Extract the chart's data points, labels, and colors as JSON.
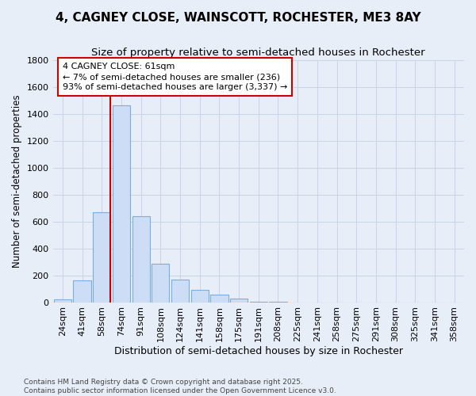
{
  "title_line1": "4, CAGNEY CLOSE, WAINSCOTT, ROCHESTER, ME3 8AY",
  "title_line2": "Size of property relative to semi-detached houses in Rochester",
  "xlabel": "Distribution of semi-detached houses by size in Rochester",
  "ylabel": "Number of semi-detached properties",
  "categories": [
    "24sqm",
    "41sqm",
    "58sqm",
    "74sqm",
    "91sqm",
    "108sqm",
    "124sqm",
    "141sqm",
    "158sqm",
    "175sqm",
    "191sqm",
    "208sqm",
    "225sqm",
    "241sqm",
    "258sqm",
    "275sqm",
    "291sqm",
    "308sqm",
    "325sqm",
    "341sqm",
    "358sqm"
  ],
  "values": [
    20,
    160,
    670,
    1460,
    640,
    285,
    170,
    90,
    55,
    25,
    5,
    5,
    0,
    0,
    0,
    0,
    0,
    0,
    0,
    0,
    0
  ],
  "bar_color": "#ccddf5",
  "bar_edge_color": "#7aaee0",
  "redline_color": "#cc0000",
  "ann_line1": "4 CAGNEY CLOSE: 61sqm",
  "ann_line2": "← 7% of semi-detached houses are smaller (236)",
  "ann_line3": "93% of semi-detached houses are larger (3,337) →",
  "ylim": [
    0,
    1800
  ],
  "yticks": [
    0,
    200,
    400,
    600,
    800,
    1000,
    1200,
    1400,
    1600,
    1800
  ],
  "grid_color": "#c8d4e8",
  "bg_color": "#e8eef8",
  "footer_line1": "Contains HM Land Registry data © Crown copyright and database right 2025.",
  "footer_line2": "Contains public sector information licensed under the Open Government Licence v3.0.",
  "title_fontsize": 11,
  "subtitle_fontsize": 9.5,
  "tick_fontsize": 8,
  "ylabel_fontsize": 8.5,
  "xlabel_fontsize": 9,
  "footer_fontsize": 6.5,
  "ann_fontsize": 8
}
